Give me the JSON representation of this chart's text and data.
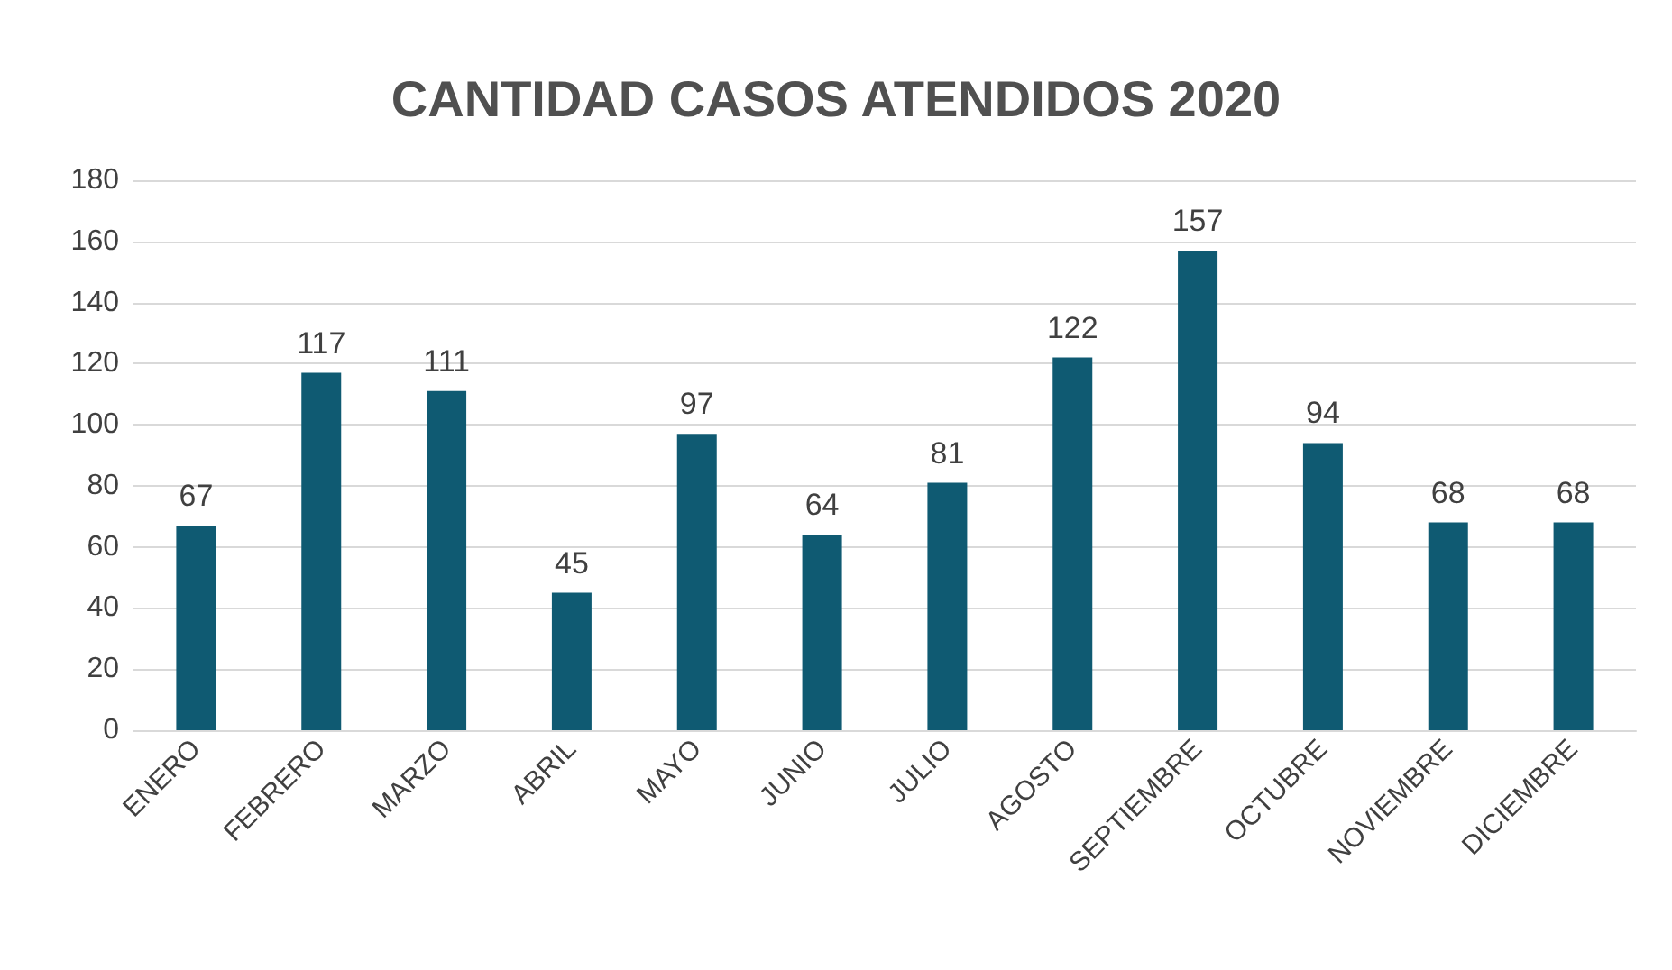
{
  "chart_data": {
    "type": "bar",
    "title": "CANTIDAD CASOS ATENDIDOS 2020",
    "categories": [
      "ENERO",
      "FEBRERO",
      "MARZO",
      "ABRIL",
      "MAYO",
      "JUNIO",
      "JULIO",
      "AGOSTO",
      "SEPTIEMBRE",
      "OCTUBRE",
      "NOVIEMBRE",
      "DICIEMBRE"
    ],
    "values": [
      67,
      117,
      111,
      45,
      97,
      64,
      81,
      122,
      157,
      94,
      68,
      68
    ],
    "color": "#0f5a72",
    "ylim": [
      0,
      180
    ],
    "yticks": [
      0,
      20,
      40,
      60,
      80,
      100,
      120,
      140,
      160,
      180
    ],
    "grid": "y",
    "data_labels": true
  }
}
